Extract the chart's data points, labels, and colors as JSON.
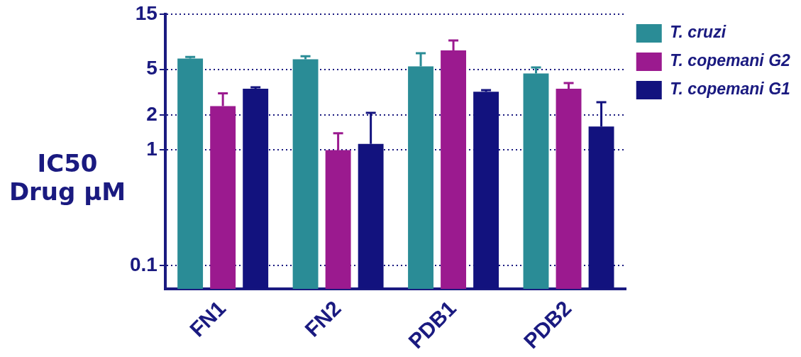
{
  "chart_data": {
    "type": "bar",
    "ylabel": "IC50 Drug μM",
    "categories": [
      "FN1",
      "FN2",
      "PDB1",
      "PDB2"
    ],
    "series": [
      {
        "name": "T. cruzi",
        "color": "#2a8c96",
        "values": [
          6.2,
          6.1,
          5.3,
          4.6
        ],
        "errors": [
          [
            6.2,
            6.4
          ],
          [
            6.1,
            6.5
          ],
          [
            5.3,
            6.9
          ],
          [
            4.6,
            5.2
          ]
        ]
      },
      {
        "name": "T. copemani G2",
        "color": "#9b1a8f",
        "values": [
          2.4,
          1.0,
          7.3,
          3.4
        ],
        "errors": [
          [
            2.4,
            3.1
          ],
          [
            1.0,
            1.4
          ],
          [
            7.3,
            8.9
          ],
          [
            3.4,
            3.8
          ]
        ]
      },
      {
        "name": "T. copemani G1",
        "color": "#12127e",
        "values": [
          3.4,
          1.13,
          3.2,
          1.6
        ],
        "errors": [
          [
            3.4,
            3.5
          ],
          [
            1.13,
            2.1
          ],
          [
            3.2,
            3.3
          ],
          [
            1.6,
            2.6
          ]
        ]
      }
    ],
    "log": "y",
    "ylim": [
      0.063,
      15
    ],
    "yticks": [
      0.1,
      1,
      2,
      5,
      15
    ],
    "grid": "y",
    "legend": "top right"
  }
}
